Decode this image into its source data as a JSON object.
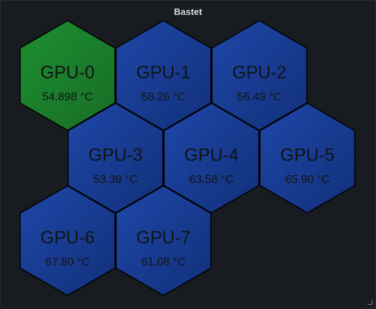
{
  "panel": {
    "title": "Bastet"
  },
  "colors": {
    "ok": "#1e8f31",
    "ok_dark": "#176d26",
    "warn": "#1e47a8",
    "warn_dark": "#12307a",
    "stroke": "#000000"
  },
  "gpus": [
    {
      "name": "GPU-0",
      "temp": "54.898 °C",
      "status": "ok"
    },
    {
      "name": "GPU-1",
      "temp": "58.26 °C",
      "status": "warn"
    },
    {
      "name": "GPU-2",
      "temp": "56.49 °C",
      "status": "warn"
    },
    {
      "name": "GPU-3",
      "temp": "53.39 °C",
      "status": "warn"
    },
    {
      "name": "GPU-4",
      "temp": "63.58 °C",
      "status": "warn"
    },
    {
      "name": "GPU-5",
      "temp": "65.90 °C",
      "status": "warn"
    },
    {
      "name": "GPU-6",
      "temp": "67.80 °C",
      "status": "warn"
    },
    {
      "name": "GPU-7",
      "temp": "61.08 °C",
      "status": "warn"
    }
  ]
}
